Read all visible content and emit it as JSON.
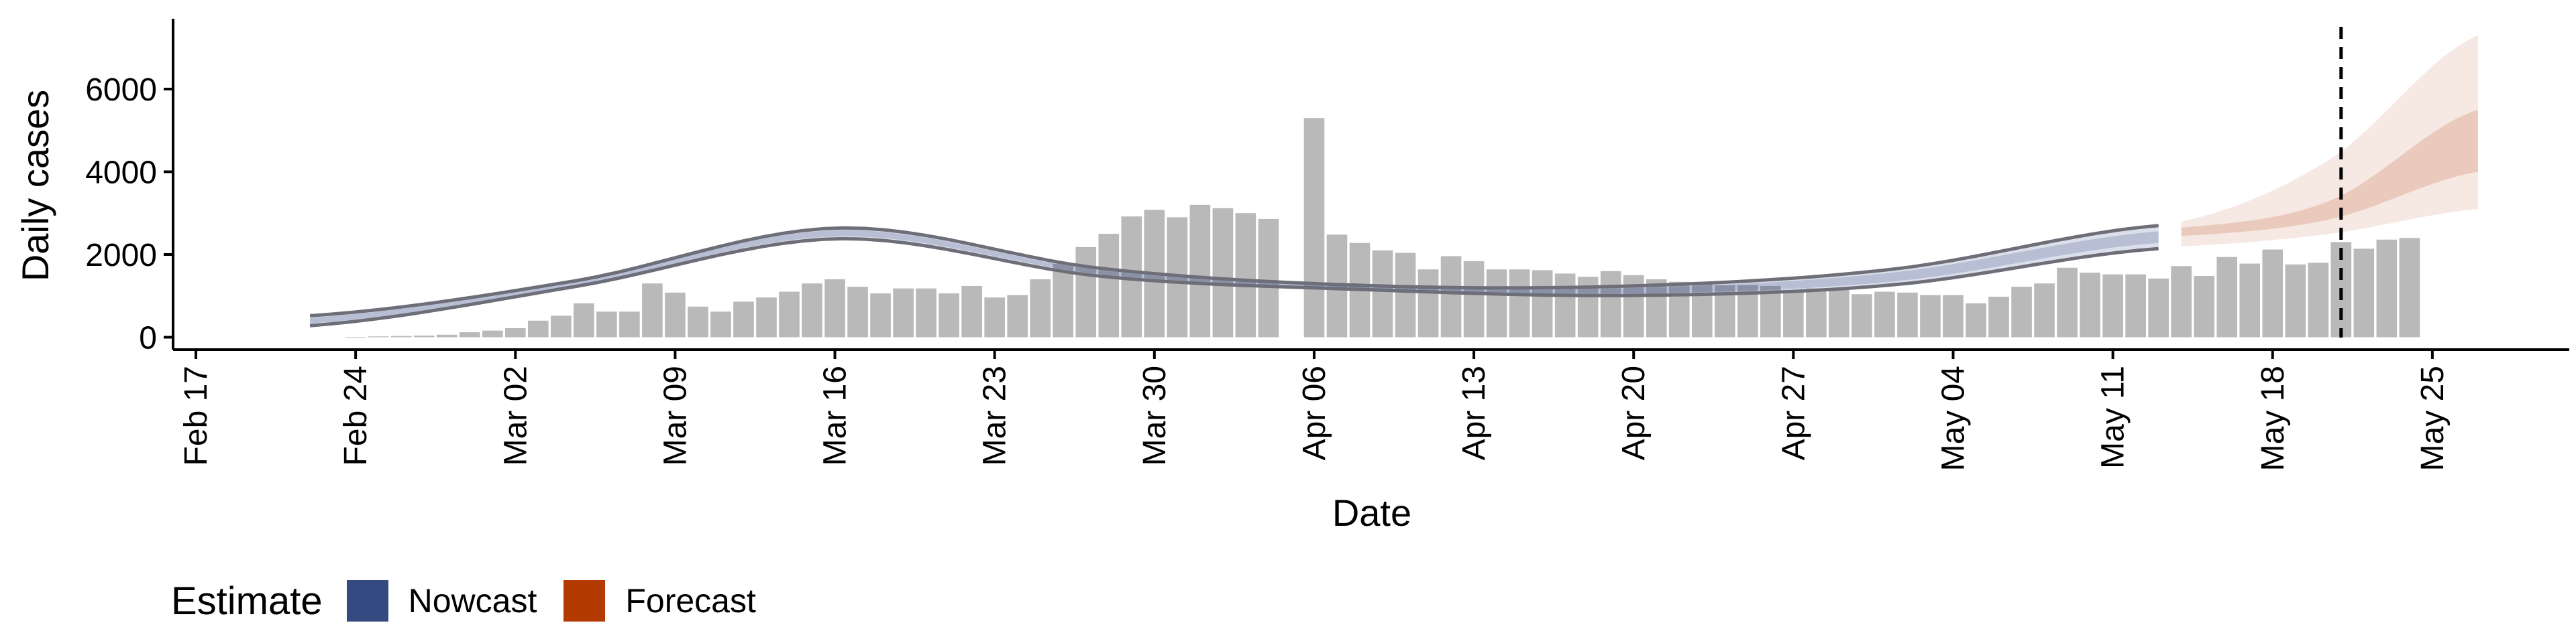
{
  "chart_data": {
    "type": "bar+ribbon",
    "xlabel": "Date",
    "ylabel": "Daily cases",
    "y_ticks": [
      0,
      2000,
      4000,
      6000
    ],
    "x_ticks": [
      "Feb 17",
      "Feb 24",
      "Mar 02",
      "Mar 09",
      "Mar 16",
      "Mar 23",
      "Mar 30",
      "Apr 06",
      "Apr 13",
      "Apr 20",
      "Apr 27",
      "May 04",
      "May 11",
      "May 18",
      "May 25"
    ],
    "x_range": [
      "2020-02-16",
      "2020-05-31"
    ],
    "y_range": [
      -300,
      7700
    ],
    "vline_date": "2020-05-21",
    "bars": {
      "start_date": "2020-02-24",
      "values": [
        0,
        20,
        30,
        40,
        60,
        120,
        160,
        220,
        400,
        520,
        820,
        620,
        620,
        1300,
        1080,
        740,
        620,
        860,
        960,
        1100,
        1300,
        1400,
        1220,
        1060,
        1180,
        1180,
        1060,
        1240,
        960,
        1020,
        1400,
        1780,
        2180,
        2500,
        2920,
        3080,
        2900,
        3200,
        3120,
        3000,
        2860,
        null,
        5300,
        2480,
        2280,
        2100,
        2040,
        1640,
        1960,
        1840,
        1640,
        1640,
        1620,
        1540,
        1460,
        1600,
        1500,
        1400,
        1340,
        1300,
        1260,
        1260,
        1240,
        1120,
        1180,
        1180,
        1040,
        1100,
        1080,
        1020,
        1020,
        820,
        980,
        1220,
        1300,
        1680,
        1560,
        1520,
        1520,
        1420,
        1720,
        1480,
        1940,
        1780,
        2120,
        1760,
        1800,
        2300,
        2140,
        2360,
        2400
      ]
    },
    "ribbons": [
      {
        "name": "Nowcast",
        "color": "#3a4f8a",
        "start_date": "2020-02-22",
        "end_date": "2020-05-13",
        "outer_lower": [
          280,
          1220,
          2380,
          1470,
          1150,
          1010,
          1270,
          2140
        ],
        "outer_upper": [
          520,
          1360,
          2640,
          1660,
          1250,
          1240,
          1650,
          2700
        ],
        "inner_lower": [
          330,
          1250,
          2440,
          1520,
          1180,
          1060,
          1350,
          2280
        ],
        "inner_upper": [
          470,
          1330,
          2590,
          1610,
          1220,
          1190,
          1570,
          2560
        ]
      },
      {
        "name": "Forecast",
        "color": "#b5400e",
        "start_date": "2020-05-14",
        "end_date": "2020-05-27",
        "outer_lower": [
          2200,
          2500,
          3100
        ],
        "outer_upper": [
          2800,
          4300,
          7300
        ],
        "inner_lower": [
          2450,
          2850,
          4000
        ],
        "inner_upper": [
          2650,
          3300,
          5500
        ]
      }
    ],
    "legend_position": "bottom-left",
    "grid": false
  },
  "legend": {
    "title": "Estimate",
    "items": [
      {
        "label": "Nowcast",
        "color": "#344a80"
      },
      {
        "label": "Forecast",
        "color": "#b33a00"
      }
    ]
  }
}
